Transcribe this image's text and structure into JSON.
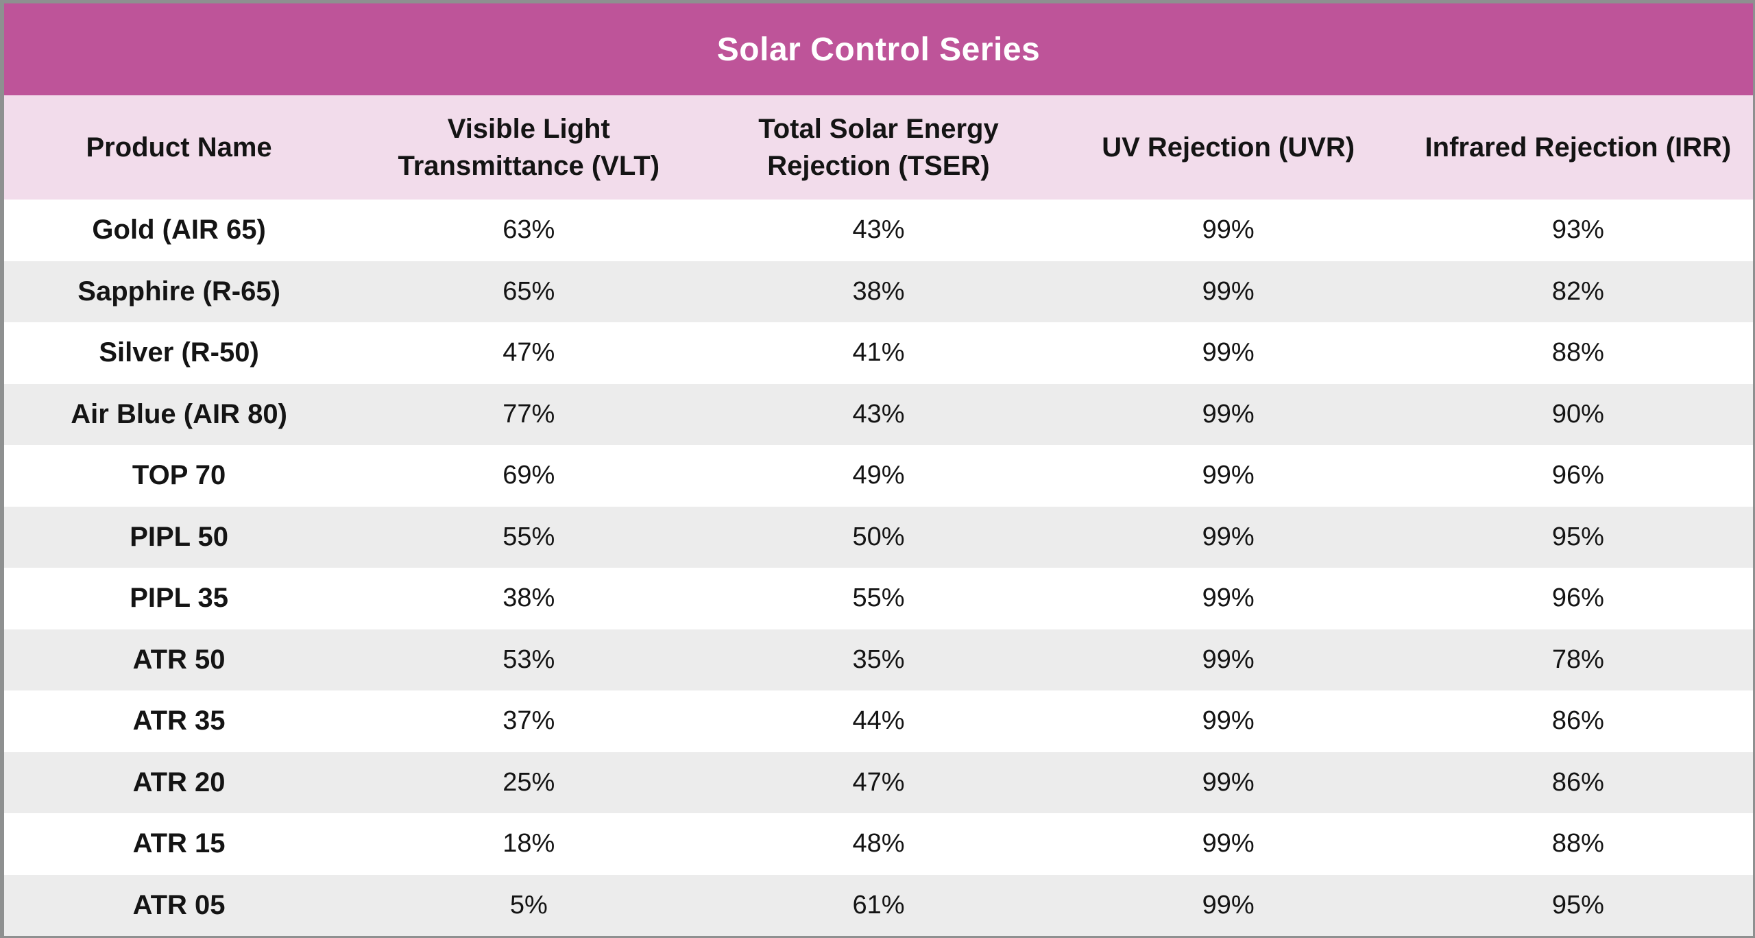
{
  "chart_data": {
    "type": "table",
    "title": "Solar Control Series",
    "columns": [
      "Product Name",
      "Visible Light Transmittance (VLT)",
      "Total Solar Energy Rejection (TSER)",
      "UV Rejection (UVR)",
      "Infrared Rejection (IRR)"
    ],
    "rows": [
      {
        "name": "Gold (AIR 65)",
        "vlt": "63%",
        "tser": "43%",
        "uvr": "99%",
        "irr": "93%"
      },
      {
        "name": "Sapphire (R-65)",
        "vlt": "65%",
        "tser": "38%",
        "uvr": "99%",
        "irr": "82%"
      },
      {
        "name": "Silver (R-50)",
        "vlt": "47%",
        "tser": "41%",
        "uvr": "99%",
        "irr": "88%"
      },
      {
        "name": "Air Blue (AIR 80)",
        "vlt": "77%",
        "tser": "43%",
        "uvr": "99%",
        "irr": "90%"
      },
      {
        "name": "TOP 70",
        "vlt": "69%",
        "tser": "49%",
        "uvr": "99%",
        "irr": "96%"
      },
      {
        "name": "PIPL 50",
        "vlt": "55%",
        "tser": "50%",
        "uvr": "99%",
        "irr": "95%"
      },
      {
        "name": "PIPL 35",
        "vlt": "38%",
        "tser": "55%",
        "uvr": "99%",
        "irr": "96%"
      },
      {
        "name": "ATR 50",
        "vlt": "53%",
        "tser": "35%",
        "uvr": "99%",
        "irr": "78%"
      },
      {
        "name": "ATR 35",
        "vlt": "37%",
        "tser": "44%",
        "uvr": "99%",
        "irr": "86%"
      },
      {
        "name": "ATR 20",
        "vlt": "25%",
        "tser": "47%",
        "uvr": "99%",
        "irr": "86%"
      },
      {
        "name": "ATR 15",
        "vlt": "18%",
        "tser": "48%",
        "uvr": "99%",
        "irr": "88%"
      },
      {
        "name": "ATR 05",
        "vlt": "5%",
        "tser": "61%",
        "uvr": "99%",
        "irr": "95%"
      }
    ],
    "layout": {
      "header_position": "top",
      "striped": true,
      "stripe_pattern": "odd-white-even-gray",
      "alignment": "center"
    }
  },
  "colors": {
    "title_bar": "#be5499",
    "header_row": "#f2dceb",
    "row": "#ffffff",
    "row_alt": "#ececec",
    "border": "#8e9090",
    "title_text": "#ffffff",
    "text": "#141414"
  }
}
